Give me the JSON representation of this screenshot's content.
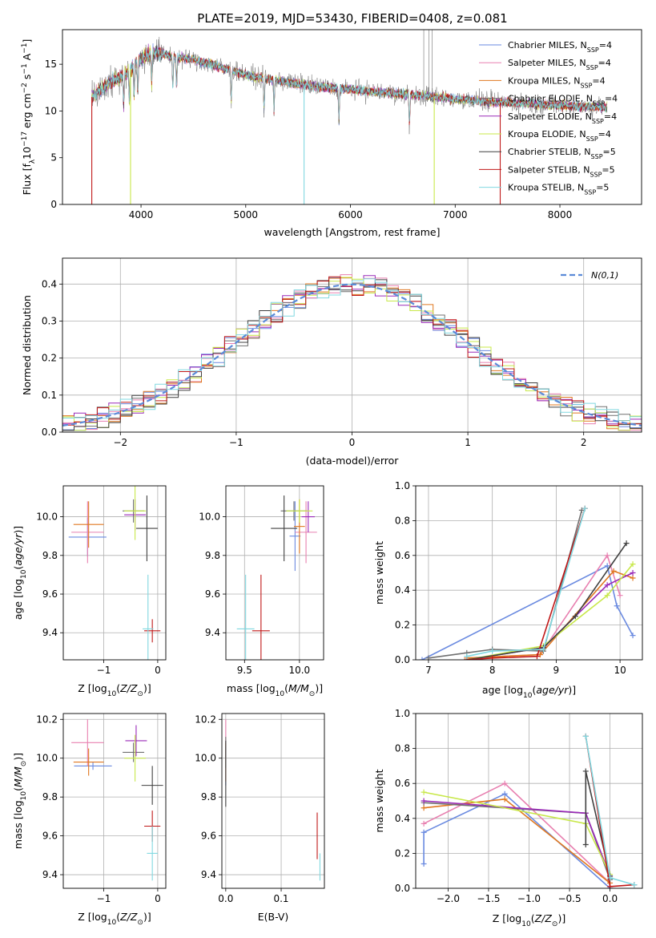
{
  "figure_title": "PLATE=2019, MJD=53430, FIBERID=0408, z=0.081",
  "colors": {
    "chabrier_miles": "#6a8ae0",
    "salpeter_miles": "#e880b0",
    "kroupa_miles": "#e07820",
    "chabrier_elodie": "#707070",
    "salpeter_elodie": "#9a2ab8",
    "kroupa_elodie": "#c8e84a",
    "chabrier_stelib": "#404040",
    "salpeter_stelib": "#c01818",
    "kroupa_stelib": "#80d8e0",
    "gauss": "#5b8bd8"
  },
  "chart_data": [
    {
      "id": "spectrum",
      "type": "line",
      "xlabel": "wavelength [Angstrom, rest frame]",
      "ylabel": "Flux [f_λ10^-17 erg cm^-2 s^-1 A^-1]",
      "xlim": [
        3250,
        8780
      ],
      "ylim": [
        0,
        18.7
      ],
      "xticks": [
        4000,
        5000,
        6000,
        7000,
        8000
      ],
      "yticks": [
        0,
        5,
        10,
        15
      ],
      "grid": false,
      "legend_position": "upper right",
      "legend": [
        {
          "main": "Chabrier MILES, N",
          "sub": "SSP",
          "tail": "=4",
          "color_key": "chabrier_miles"
        },
        {
          "main": "Salpeter MILES, N",
          "sub": "SSP",
          "tail": "=4",
          "color_key": "salpeter_miles"
        },
        {
          "main": "Kroupa MILES, N",
          "sub": "SSP",
          "tail": "=4",
          "color_key": "kroupa_miles"
        },
        {
          "main": "Chabrier ELODIE, N",
          "sub": "SSP",
          "tail": "=4",
          "color_key": "chabrier_elodie"
        },
        {
          "main": "Salpeter ELODIE, N",
          "sub": "SSP",
          "tail": "=4",
          "color_key": "salpeter_elodie"
        },
        {
          "main": "Kroupa ELODIE, N",
          "sub": "SSP",
          "tail": "=4",
          "color_key": "kroupa_elodie"
        },
        {
          "main": "Chabrier STELIB, N",
          "sub": "SSP",
          "tail": "=5",
          "color_key": "chabrier_stelib"
        },
        {
          "main": "Salpeter STELIB, N",
          "sub": "SSP",
          "tail": "=5",
          "color_key": "salpeter_stelib"
        },
        {
          "main": "Kroupa STELIB, N",
          "sub": "SSP",
          "tail": "=5",
          "color_key": "kroupa_stelib"
        }
      ],
      "continuum": [
        [
          3530,
          11.5
        ],
        [
          3700,
          13.0
        ],
        [
          3850,
          14.0
        ],
        [
          3950,
          15.0
        ],
        [
          4050,
          16.0
        ],
        [
          4150,
          16.3
        ],
        [
          4300,
          15.8
        ],
        [
          4500,
          15.5
        ],
        [
          4700,
          14.9
        ],
        [
          4900,
          14.2
        ],
        [
          5100,
          13.6
        ],
        [
          5300,
          13.3
        ],
        [
          5500,
          12.9
        ],
        [
          5800,
          12.5
        ],
        [
          6100,
          12.2
        ],
        [
          6400,
          11.9
        ],
        [
          6700,
          11.6
        ],
        [
          7000,
          11.3
        ],
        [
          7300,
          11.0
        ],
        [
          7600,
          10.8
        ],
        [
          8000,
          10.6
        ],
        [
          8200,
          10.5
        ],
        [
          8450,
          10.4
        ]
      ],
      "drops": [
        {
          "wavelength": 3530,
          "value": 0,
          "series": "salpeter_stelib"
        },
        {
          "wavelength": 3900,
          "value": 0,
          "series": "kroupa_elodie"
        },
        {
          "wavelength": 5557,
          "value": 0,
          "series": "kroupa_stelib"
        },
        {
          "wavelength": 6800,
          "value": 0,
          "series": "kroupa_elodie"
        },
        {
          "wavelength": 7430,
          "value": 0,
          "series": "salpeter_stelib"
        }
      ],
      "spikes": [
        {
          "wavelength": 6700,
          "value": 18.7,
          "series": "chabrier_elodie"
        },
        {
          "wavelength": 6750,
          "value": 18.7,
          "series": "chabrier_elodie"
        },
        {
          "wavelength": 6780,
          "value": 18.7,
          "series": "chabrier_elodie"
        }
      ]
    },
    {
      "id": "residuals",
      "type": "histogram",
      "xlabel": "(data-model)/error",
      "ylabel": "Normed distribution",
      "xlim": [
        -2.5,
        2.5
      ],
      "ylim": [
        0,
        0.47
      ],
      "xticks": [
        -2,
        -1,
        0,
        1,
        2
      ],
      "yticks": [
        0.0,
        0.1,
        0.2,
        0.3,
        0.4
      ],
      "grid": true,
      "bin_width": 0.1,
      "legend_label": "N(0,1)",
      "legend_position": "upper right",
      "series_order": [
        "chabrier_miles",
        "salpeter_miles",
        "kroupa_miles",
        "chabrier_elodie",
        "salpeter_elodie",
        "kroupa_elodie",
        "chabrier_stelib",
        "salpeter_stelib",
        "kroupa_stelib"
      ]
    },
    {
      "id": "age_vs_z",
      "type": "errorbar",
      "xlabel": "Z [log10(Z/Z⊙)]",
      "ylabel": "age [log10(age/yr)]",
      "xlim": [
        -1.75,
        0.15
      ],
      "ylim": [
        9.26,
        10.16
      ],
      "xticks": [
        -1,
        0
      ],
      "yticks": [
        9.4,
        9.6,
        9.8,
        10.0
      ],
      "grid": true,
      "points": [
        {
          "x": -1.3,
          "xerr": 0.35,
          "y": 9.895,
          "yerr": 0.1,
          "series": "chabrier_miles"
        },
        {
          "x": -1.3,
          "xerr": 0.3,
          "y": 9.92,
          "yerr": 0.16,
          "series": "salpeter_miles"
        },
        {
          "x": -1.28,
          "xerr": 0.28,
          "y": 9.96,
          "yerr": 0.12,
          "series": "kroupa_miles"
        },
        {
          "x": -0.45,
          "xerr": 0.2,
          "y": 10.03,
          "yerr": 0.06,
          "series": "chabrier_elodie"
        },
        {
          "x": -0.42,
          "xerr": 0.2,
          "y": 10.01,
          "yerr": 0.08,
          "series": "salpeter_elodie"
        },
        {
          "x": -0.42,
          "xerr": 0.2,
          "y": 10.03,
          "yerr": 0.15,
          "series": "kroupa_elodie"
        },
        {
          "x": -0.2,
          "xerr": 0.2,
          "y": 9.94,
          "yerr": 0.17,
          "series": "chabrier_stelib"
        },
        {
          "x": -0.1,
          "xerr": 0.15,
          "y": 9.41,
          "yerr": 0.06,
          "series": "salpeter_stelib"
        },
        {
          "x": -0.18,
          "xerr": 0.1,
          "y": 9.42,
          "yerr": 0.28,
          "series": "kroupa_stelib"
        }
      ]
    },
    {
      "id": "age_vs_mass",
      "type": "errorbar",
      "xlabel": "mass [log10(M/M⊙)]",
      "ylabel": "",
      "xlim": [
        9.33,
        10.22
      ],
      "ylim": [
        9.26,
        10.16
      ],
      "xticks": [
        9.5,
        10.0
      ],
      "yticks": [
        9.4,
        9.6,
        9.8,
        10.0
      ],
      "grid": true,
      "points": [
        {
          "x": 9.96,
          "xerr": 0.05,
          "y": 9.9,
          "yerr": 0.18,
          "series": "chabrier_miles"
        },
        {
          "x": 10.06,
          "xerr": 0.1,
          "y": 9.92,
          "yerr": 0.16,
          "series": "salpeter_miles"
        },
        {
          "x": 10.0,
          "xerr": 0.05,
          "y": 9.95,
          "yerr": 0.14,
          "series": "kroupa_miles"
        },
        {
          "x": 9.95,
          "xerr": 0.12,
          "y": 10.03,
          "yerr": 0.05,
          "series": "chabrier_elodie"
        },
        {
          "x": 10.08,
          "xerr": 0.06,
          "y": 10.0,
          "yerr": 0.08,
          "series": "salpeter_elodie"
        },
        {
          "x": 10.0,
          "xerr": 0.12,
          "y": 10.03,
          "yerr": 0.06,
          "series": "kroupa_elodie"
        },
        {
          "x": 9.86,
          "xerr": 0.12,
          "y": 9.94,
          "yerr": 0.17,
          "series": "chabrier_stelib"
        },
        {
          "x": 9.65,
          "xerr": 0.08,
          "y": 9.41,
          "yerr": 0.29,
          "series": "salpeter_stelib"
        },
        {
          "x": 9.51,
          "xerr": 0.08,
          "y": 9.42,
          "yerr": 0.28,
          "series": "kroupa_stelib"
        }
      ]
    },
    {
      "id": "weight_vs_age",
      "type": "line",
      "xlabel": "age [log10(age/yr)]",
      "ylabel": "mass weight",
      "xlim": [
        6.8,
        10.35
      ],
      "ylim": [
        0,
        1.0
      ],
      "xticks": [
        7,
        8,
        9,
        10
      ],
      "yticks": [
        0.0,
        0.2,
        0.4,
        0.6,
        0.8,
        1.0
      ],
      "grid": true,
      "series": [
        {
          "name": "Chabrier MILES",
          "color_key": "chabrier_miles",
          "x": [
            6.9,
            9.8,
            9.95,
            10.2
          ],
          "y": [
            0.0,
            0.54,
            0.31,
            0.14
          ]
        },
        {
          "name": "Salpeter MILES",
          "color_key": "salpeter_miles",
          "x": [
            7.6,
            8.75,
            9.8,
            10.0
          ],
          "y": [
            0.01,
            0.03,
            0.6,
            0.37
          ]
        },
        {
          "name": "Kroupa MILES",
          "color_key": "kroupa_miles",
          "x": [
            7.6,
            8.75,
            9.9,
            10.2
          ],
          "y": [
            0.01,
            0.03,
            0.51,
            0.47
          ]
        },
        {
          "name": "Chabrier ELODIE",
          "color_key": "chabrier_elodie",
          "x": [
            7.0,
            7.6,
            8.0,
            8.8,
            9.4
          ],
          "y": [
            0.01,
            0.04,
            0.06,
            0.05,
            0.86
          ]
        },
        {
          "name": "Salpeter ELODIE",
          "color_key": "salpeter_elodie",
          "x": [
            7.6,
            8.8,
            9.8,
            10.2
          ],
          "y": [
            0.0,
            0.07,
            0.43,
            0.5
          ]
        },
        {
          "name": "Kroupa ELODIE",
          "color_key": "kroupa_elodie",
          "x": [
            7.6,
            8.8,
            9.8,
            10.2
          ],
          "y": [
            0.0,
            0.08,
            0.37,
            0.55
          ]
        },
        {
          "name": "Chabrier STELIB",
          "color_key": "chabrier_stelib",
          "x": [
            7.6,
            8.8,
            9.3,
            10.1
          ],
          "y": [
            0.0,
            0.07,
            0.25,
            0.67
          ]
        },
        {
          "name": "Salpeter STELIB",
          "color_key": "salpeter_stelib",
          "x": [
            7.6,
            8.0,
            8.7,
            9.45
          ],
          "y": [
            0.0,
            0.01,
            0.02,
            0.87
          ]
        },
        {
          "name": "Kroupa STELIB",
          "color_key": "kroupa_stelib",
          "x": [
            7.6,
            8.0,
            8.8,
            9.45
          ],
          "y": [
            0.02,
            0.05,
            0.06,
            0.87
          ]
        }
      ]
    },
    {
      "id": "mass_vs_z",
      "type": "errorbar",
      "xlabel": "Z [log10(Z/Z⊙)]",
      "ylabel": "mass [log10(M/M⊙)]",
      "xlim": [
        -1.75,
        0.15
      ],
      "ylim": [
        9.33,
        10.23
      ],
      "xticks": [
        -1,
        0
      ],
      "yticks": [
        9.4,
        9.6,
        9.8,
        10.0,
        10.2
      ],
      "grid": true,
      "points": [
        {
          "x": -1.2,
          "xerr": 0.35,
          "y": 9.96,
          "yerr": 0.02,
          "series": "chabrier_miles"
        },
        {
          "x": -1.3,
          "xerr": 0.3,
          "y": 10.08,
          "yerr": 0.12,
          "series": "salpeter_miles"
        },
        {
          "x": -1.28,
          "xerr": 0.28,
          "y": 9.98,
          "yerr": 0.07,
          "series": "kroupa_miles"
        },
        {
          "x": -0.45,
          "xerr": 0.2,
          "y": 10.03,
          "yerr": 0.05,
          "series": "chabrier_elodie"
        },
        {
          "x": -0.4,
          "xerr": 0.2,
          "y": 10.09,
          "yerr": 0.08,
          "series": "salpeter_elodie"
        },
        {
          "x": -0.42,
          "xerr": 0.2,
          "y": 10.0,
          "yerr": 0.12,
          "series": "kroupa_elodie"
        },
        {
          "x": -0.1,
          "xerr": 0.2,
          "y": 9.86,
          "yerr": 0.1,
          "series": "chabrier_stelib"
        },
        {
          "x": -0.1,
          "xerr": 0.15,
          "y": 9.65,
          "yerr": 0.08,
          "series": "salpeter_stelib"
        },
        {
          "x": -0.1,
          "xerr": 0.1,
          "y": 9.51,
          "yerr": 0.14,
          "series": "kroupa_stelib"
        }
      ]
    },
    {
      "id": "mass_vs_ebv",
      "type": "errorbar",
      "xlabel": "E(B-V)",
      "ylabel": "",
      "xlim": [
        -0.007,
        0.178
      ],
      "ylim": [
        9.33,
        10.23
      ],
      "xticks": [
        0.0,
        0.1
      ],
      "yticks": [
        9.4,
        9.6,
        9.8,
        10.0,
        10.2
      ],
      "grid": true,
      "points": [
        {
          "x": 0.0,
          "xerr": 0.0,
          "y": 10.1,
          "yerr": 0.1,
          "series": "salpeter_miles"
        },
        {
          "x": 0.0,
          "xerr": 0.0,
          "y": 9.96,
          "yerr": 0.1,
          "series": "chabrier_miles"
        },
        {
          "x": 0.0,
          "xerr": 0.0,
          "y": 9.98,
          "yerr": 0.1,
          "series": "kroupa_miles"
        },
        {
          "x": 0.0,
          "xerr": 0.0,
          "y": 10.03,
          "yerr": 0.08,
          "series": "chabrier_elodie"
        },
        {
          "x": 0.0,
          "xerr": 0.0,
          "y": 9.92,
          "yerr": 0.17,
          "series": "chabrier_stelib"
        },
        {
          "x": 0.165,
          "xerr": 0.0,
          "y": 9.6,
          "yerr": 0.12,
          "series": "salpeter_stelib"
        },
        {
          "x": 0.17,
          "xerr": 0.0,
          "y": 9.44,
          "yerr": 0.07,
          "series": "kroupa_stelib"
        }
      ]
    },
    {
      "id": "weight_vs_z",
      "type": "line",
      "xlabel": "Z [log10(Z/Z⊙)]",
      "ylabel": "mass weight",
      "xlim": [
        -2.4,
        0.4
      ],
      "ylim": [
        0,
        1.0
      ],
      "xticks": [
        -2.0,
        -1.5,
        -1.0,
        -0.5,
        0.0
      ],
      "yticks": [
        0.0,
        0.2,
        0.4,
        0.6,
        0.8,
        1.0
      ],
      "grid": true,
      "series": [
        {
          "name": "Chabrier MILES",
          "color_key": "chabrier_miles",
          "x": [
            -2.3,
            -2.3,
            -1.3,
            0.0
          ],
          "y": [
            0.14,
            0.32,
            0.54,
            0.0
          ]
        },
        {
          "name": "Salpeter MILES",
          "color_key": "salpeter_miles",
          "x": [
            -2.3,
            -1.3,
            0.0
          ],
          "y": [
            0.37,
            0.6,
            0.03
          ]
        },
        {
          "name": "Kroupa MILES",
          "color_key": "kroupa_miles",
          "x": [
            -2.3,
            -1.3,
            0.0
          ],
          "y": [
            0.46,
            0.51,
            0.03
          ]
        },
        {
          "name": "Chabrier ELODIE",
          "color_key": "chabrier_elodie",
          "x": [
            -2.3,
            -0.3,
            0.0
          ],
          "y": [
            0.49,
            0.43,
            0.05
          ]
        },
        {
          "name": "Salpeter ELODIE",
          "color_key": "salpeter_elodie",
          "x": [
            -2.3,
            -0.3,
            0.0
          ],
          "y": [
            0.5,
            0.43,
            0.07
          ]
        },
        {
          "name": "Kroupa ELODIE",
          "color_key": "kroupa_elodie",
          "x": [
            -2.3,
            -0.3,
            0.0
          ],
          "y": [
            0.55,
            0.37,
            0.08
          ]
        },
        {
          "name": "Chabrier STELIB",
          "color_key": "chabrier_stelib",
          "x": [
            -0.3,
            -0.3,
            0.0
          ],
          "y": [
            0.25,
            0.67,
            0.07
          ]
        },
        {
          "name": "Salpeter STELIB",
          "color_key": "salpeter_stelib",
          "x": [
            -0.3,
            0.0,
            0.3
          ],
          "y": [
            0.87,
            0.01,
            0.02
          ]
        },
        {
          "name": "Kroupa STELIB",
          "color_key": "kroupa_stelib",
          "x": [
            -0.3,
            0.0,
            0.3
          ],
          "y": [
            0.87,
            0.06,
            0.02
          ]
        }
      ]
    }
  ]
}
